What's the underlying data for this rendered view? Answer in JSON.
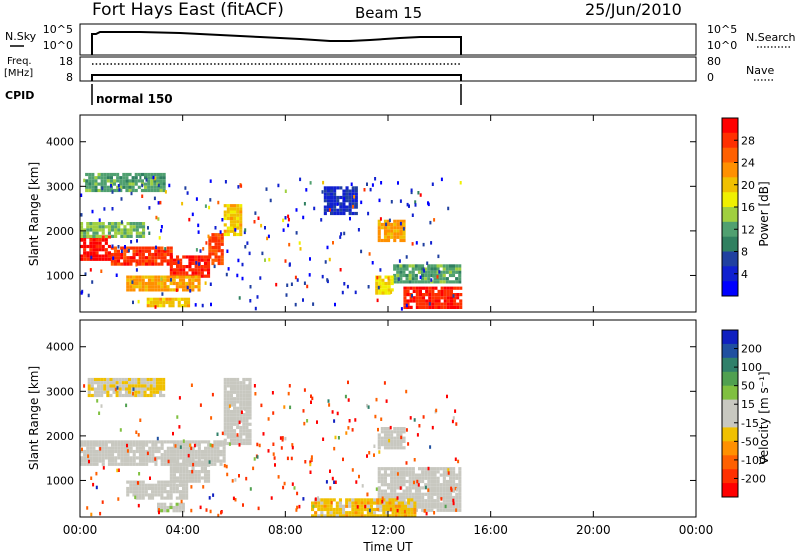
{
  "header": {
    "station": "Fort Hays East (fitACF)",
    "beam": "Beam 15",
    "date": "25/Jun/2010"
  },
  "aux_panels": {
    "nsky_label": "N.Sky",
    "nsky_ticks": [
      "10^5",
      "10^0"
    ],
    "nsearch_label": "N.Search",
    "nsearch_ticks": [
      "10^5",
      "10^0"
    ],
    "freq_label_1": "Freq.",
    "freq_label_2": "[MHz]",
    "freq_ticks": [
      "18",
      "8"
    ],
    "nave_label": "Nave",
    "nave_ticks": [
      "80",
      "0"
    ],
    "cpid_label": "CPID",
    "cpid_value": "normal 150"
  },
  "colorbars": {
    "power": {
      "label": "Power [dB]",
      "ticks": [
        "28",
        "24",
        "20",
        "16",
        "12",
        "8",
        "4"
      ],
      "colors": [
        "#ff0000",
        "#ff3000",
        "#ff6000",
        "#ff9000",
        "#f0c000",
        "#f0f000",
        "#a0d040",
        "#50a070",
        "#308060",
        "#2040a0",
        "#1020d0",
        "#0000ff"
      ]
    },
    "velocity": {
      "label": "Velocity [m s⁻¹]",
      "ticks": [
        "200",
        "100",
        "50",
        "15",
        "-15",
        "-50",
        "-100",
        "-200"
      ],
      "colors": [
        "#1020c0",
        "#2050a0",
        "#30806a",
        "#50a050",
        "#80c040",
        "#c8c8c0",
        "#c8c8c0",
        "#f0c000",
        "#ff9000",
        "#ff6000",
        "#ff3000",
        "#ff0000"
      ]
    }
  },
  "panels": {
    "slant_range_label": "Slant Range [km]",
    "y_ticks": [
      "1000",
      "2000",
      "3000",
      "4000"
    ],
    "x_ticks": [
      "00:00",
      "04:00",
      "08:00",
      "12:00",
      "16:00",
      "20:00",
      "00:00"
    ],
    "x_label": "Time UT"
  },
  "chart_data": [
    {
      "type": "heatmap",
      "title": "",
      "xlabel": "",
      "ylabel": "Slant Range [km]",
      "xlim": [
        0,
        24
      ],
      "ylim": [
        180,
        4600
      ],
      "colorbar": {
        "label": "Power [dB]",
        "range": [
          0,
          32
        ]
      },
      "patches": [
        {
          "t0": 0.0,
          "t1": 1.2,
          "r0": 1350,
          "r1": 1900,
          "v": 30
        },
        {
          "t0": 1.2,
          "t1": 3.5,
          "r0": 1250,
          "r1": 1650,
          "v": 28
        },
        {
          "t0": 3.5,
          "t1": 5.0,
          "r0": 950,
          "r1": 1450,
          "v": 29
        },
        {
          "t0": 5.0,
          "t1": 5.6,
          "r0": 1250,
          "r1": 1950,
          "v": 27
        },
        {
          "t0": 5.6,
          "t1": 6.3,
          "r0": 1900,
          "r1": 2600,
          "v": 20
        },
        {
          "t0": 0.0,
          "t1": 2.5,
          "r0": 1900,
          "r1": 2200,
          "v": 14
        },
        {
          "t0": 0.2,
          "t1": 3.3,
          "r0": 2900,
          "r1": 3300,
          "v": 12
        },
        {
          "t0": 1.8,
          "t1": 4.6,
          "r0": 700,
          "r1": 1000,
          "v": 22
        },
        {
          "t0": 2.6,
          "t1": 4.2,
          "r0": 300,
          "r1": 500,
          "v": 20
        },
        {
          "t0": 11.6,
          "t1": 12.6,
          "r0": 1750,
          "r1": 2250,
          "v": 22
        },
        {
          "t0": 12.2,
          "t1": 14.8,
          "r0": 850,
          "r1": 1250,
          "v": 12
        },
        {
          "t0": 12.6,
          "t1": 14.8,
          "r0": 250,
          "r1": 750,
          "v": 29
        },
        {
          "t0": 11.5,
          "t1": 12.2,
          "r0": 600,
          "r1": 1000,
          "v": 18
        },
        {
          "t0": 9.5,
          "t1": 10.8,
          "r0": 2400,
          "r1": 3000,
          "v": 5
        }
      ]
    },
    {
      "type": "heatmap",
      "title": "",
      "xlabel": "Time UT",
      "ylabel": "Slant Range [km]",
      "xlim": [
        0,
        24
      ],
      "ylim": [
        180,
        4600
      ],
      "colorbar": {
        "label": "Velocity [m s⁻¹]",
        "range": [
          -250,
          250
        ]
      },
      "patches": [
        {
          "t0": 0.0,
          "t1": 5.6,
          "r0": 1350,
          "r1": 1900,
          "v": -10
        },
        {
          "t0": 3.5,
          "t1": 5.0,
          "r0": 950,
          "r1": 1450,
          "v": -5
        },
        {
          "t0": 5.6,
          "t1": 6.6,
          "r0": 1800,
          "r1": 3300,
          "v": -10
        },
        {
          "t0": 0.3,
          "t1": 3.2,
          "r0": 2900,
          "r1": 3300,
          "v": -40
        },
        {
          "t0": 1.8,
          "t1": 4.2,
          "r0": 600,
          "r1": 1000,
          "v": -8
        },
        {
          "t0": 11.6,
          "t1": 14.8,
          "r0": 350,
          "r1": 1300,
          "v": -10
        },
        {
          "t0": 9.0,
          "t1": 13.0,
          "r0": 200,
          "r1": 600,
          "v": -60
        },
        {
          "t0": 11.6,
          "t1": 12.6,
          "r0": 1750,
          "r1": 2200,
          "v": -10
        },
        {
          "t0": 3.0,
          "t1": 4.0,
          "r0": 300,
          "r1": 500,
          "v": 20
        }
      ]
    }
  ]
}
